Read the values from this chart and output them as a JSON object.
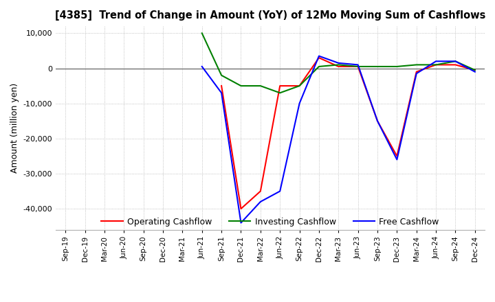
{
  "title": "[4385]  Trend of Change in Amount (YoY) of 12Mo Moving Sum of Cashflows",
  "ylabel": "Amount (million yen)",
  "ylim": [
    -46000,
    12000
  ],
  "yticks": [
    10000,
    0,
    -10000,
    -20000,
    -30000,
    -40000
  ],
  "x_labels": [
    "Sep-19",
    "Dec-19",
    "Mar-20",
    "Jun-20",
    "Sep-20",
    "Dec-20",
    "Mar-21",
    "Jun-21",
    "Sep-21",
    "Dec-21",
    "Mar-22",
    "Jun-22",
    "Sep-22",
    "Dec-22",
    "Mar-23",
    "Jun-23",
    "Sep-23",
    "Dec-23",
    "Mar-24",
    "Jun-24",
    "Sep-24",
    "Dec-24"
  ],
  "operating": [
    null,
    null,
    null,
    null,
    null,
    null,
    null,
    null,
    -5000,
    -40000,
    -35000,
    -5000,
    -5000,
    3000,
    500,
    500,
    -15000,
    -25000,
    -1000,
    1000,
    1000,
    -500
  ],
  "investing": [
    null,
    null,
    null,
    null,
    null,
    null,
    null,
    10000,
    -2000,
    -5000,
    -5000,
    -7000,
    -5000,
    500,
    1000,
    500,
    500,
    500,
    1000,
    1000,
    2000,
    -500
  ],
  "free": [
    null,
    null,
    null,
    null,
    null,
    null,
    null,
    500,
    -7000,
    -44000,
    -38000,
    -35000,
    -10000,
    3500,
    1500,
    1000,
    -15000,
    -26000,
    -1500,
    2000,
    2000,
    -1000
  ],
  "op_color": "#ff0000",
  "inv_color": "#008000",
  "free_color": "#0000ff",
  "legend_labels": [
    "Operating Cashflow",
    "Investing Cashflow",
    "Free Cashflow"
  ],
  "background_color": "#ffffff",
  "grid_color": "#b0b0b0"
}
